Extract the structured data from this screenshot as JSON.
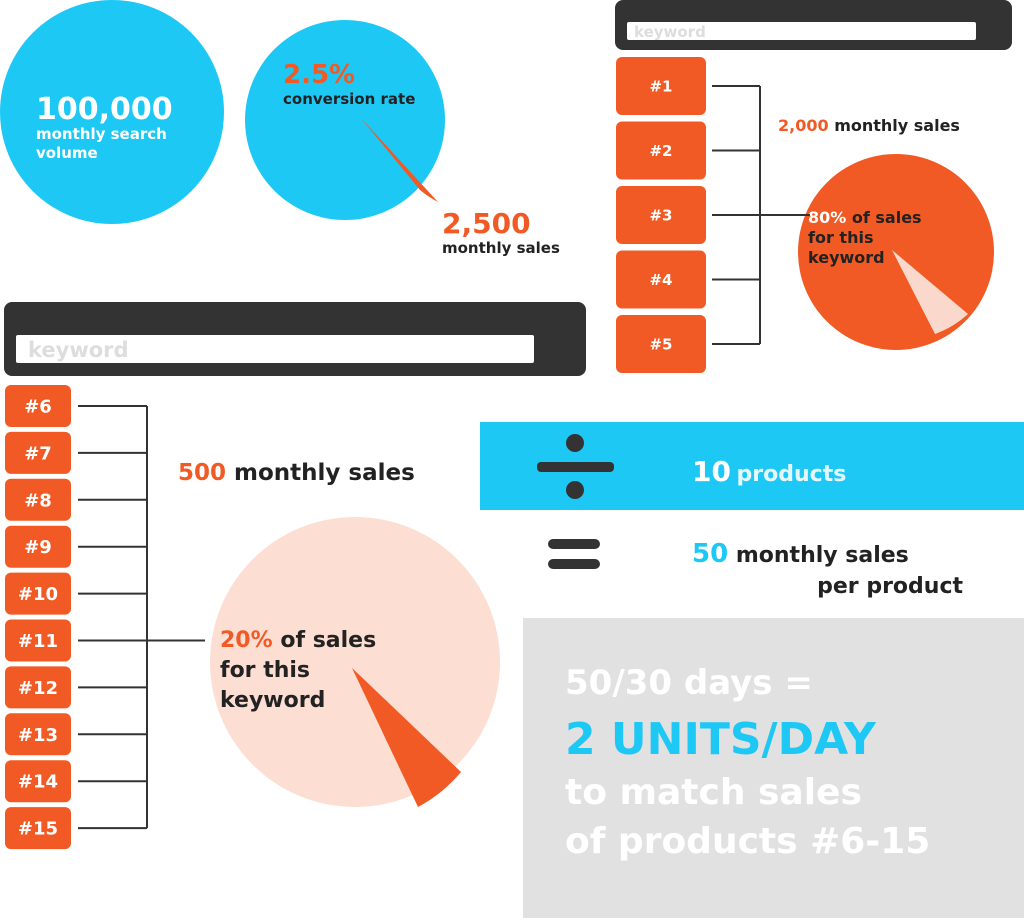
{
  "search_volume": {
    "number": "100,000",
    "label_lines": [
      "monthly search",
      "volume"
    ]
  },
  "conversion": {
    "number": "2.5%",
    "label": "conversion rate"
  },
  "total_sales": {
    "number": "2,500",
    "label": "monthly sales"
  },
  "search_top": {
    "placeholder": "keyword",
    "ranks": [
      "#1",
      "#2",
      "#3",
      "#4",
      "#5"
    ]
  },
  "top_sales": {
    "number": "2,000",
    "label": "monthly sales"
  },
  "top_share": {
    "number": "80%",
    "label_lines": [
      "of sales",
      "for this",
      "keyword"
    ]
  },
  "search_rest": {
    "placeholder": "keyword",
    "ranks": [
      "#6",
      "#7",
      "#8",
      "#9",
      "#10",
      "#11",
      "#12",
      "#13",
      "#14",
      "#15"
    ]
  },
  "rest_sales": {
    "number": "500",
    "label": "monthly sales"
  },
  "rest_share": {
    "number": "20%",
    "label_lines": [
      "of sales",
      "for this",
      "keyword"
    ]
  },
  "divide": {
    "number": "10",
    "label": "products"
  },
  "result": {
    "number": "50",
    "label_lines": [
      "monthly sales",
      "per product"
    ]
  },
  "summary": {
    "line1": "50/30 days =",
    "line2": "2 UNITS/DAY",
    "line3": "to match sales",
    "line4": "of products #6-15"
  }
}
